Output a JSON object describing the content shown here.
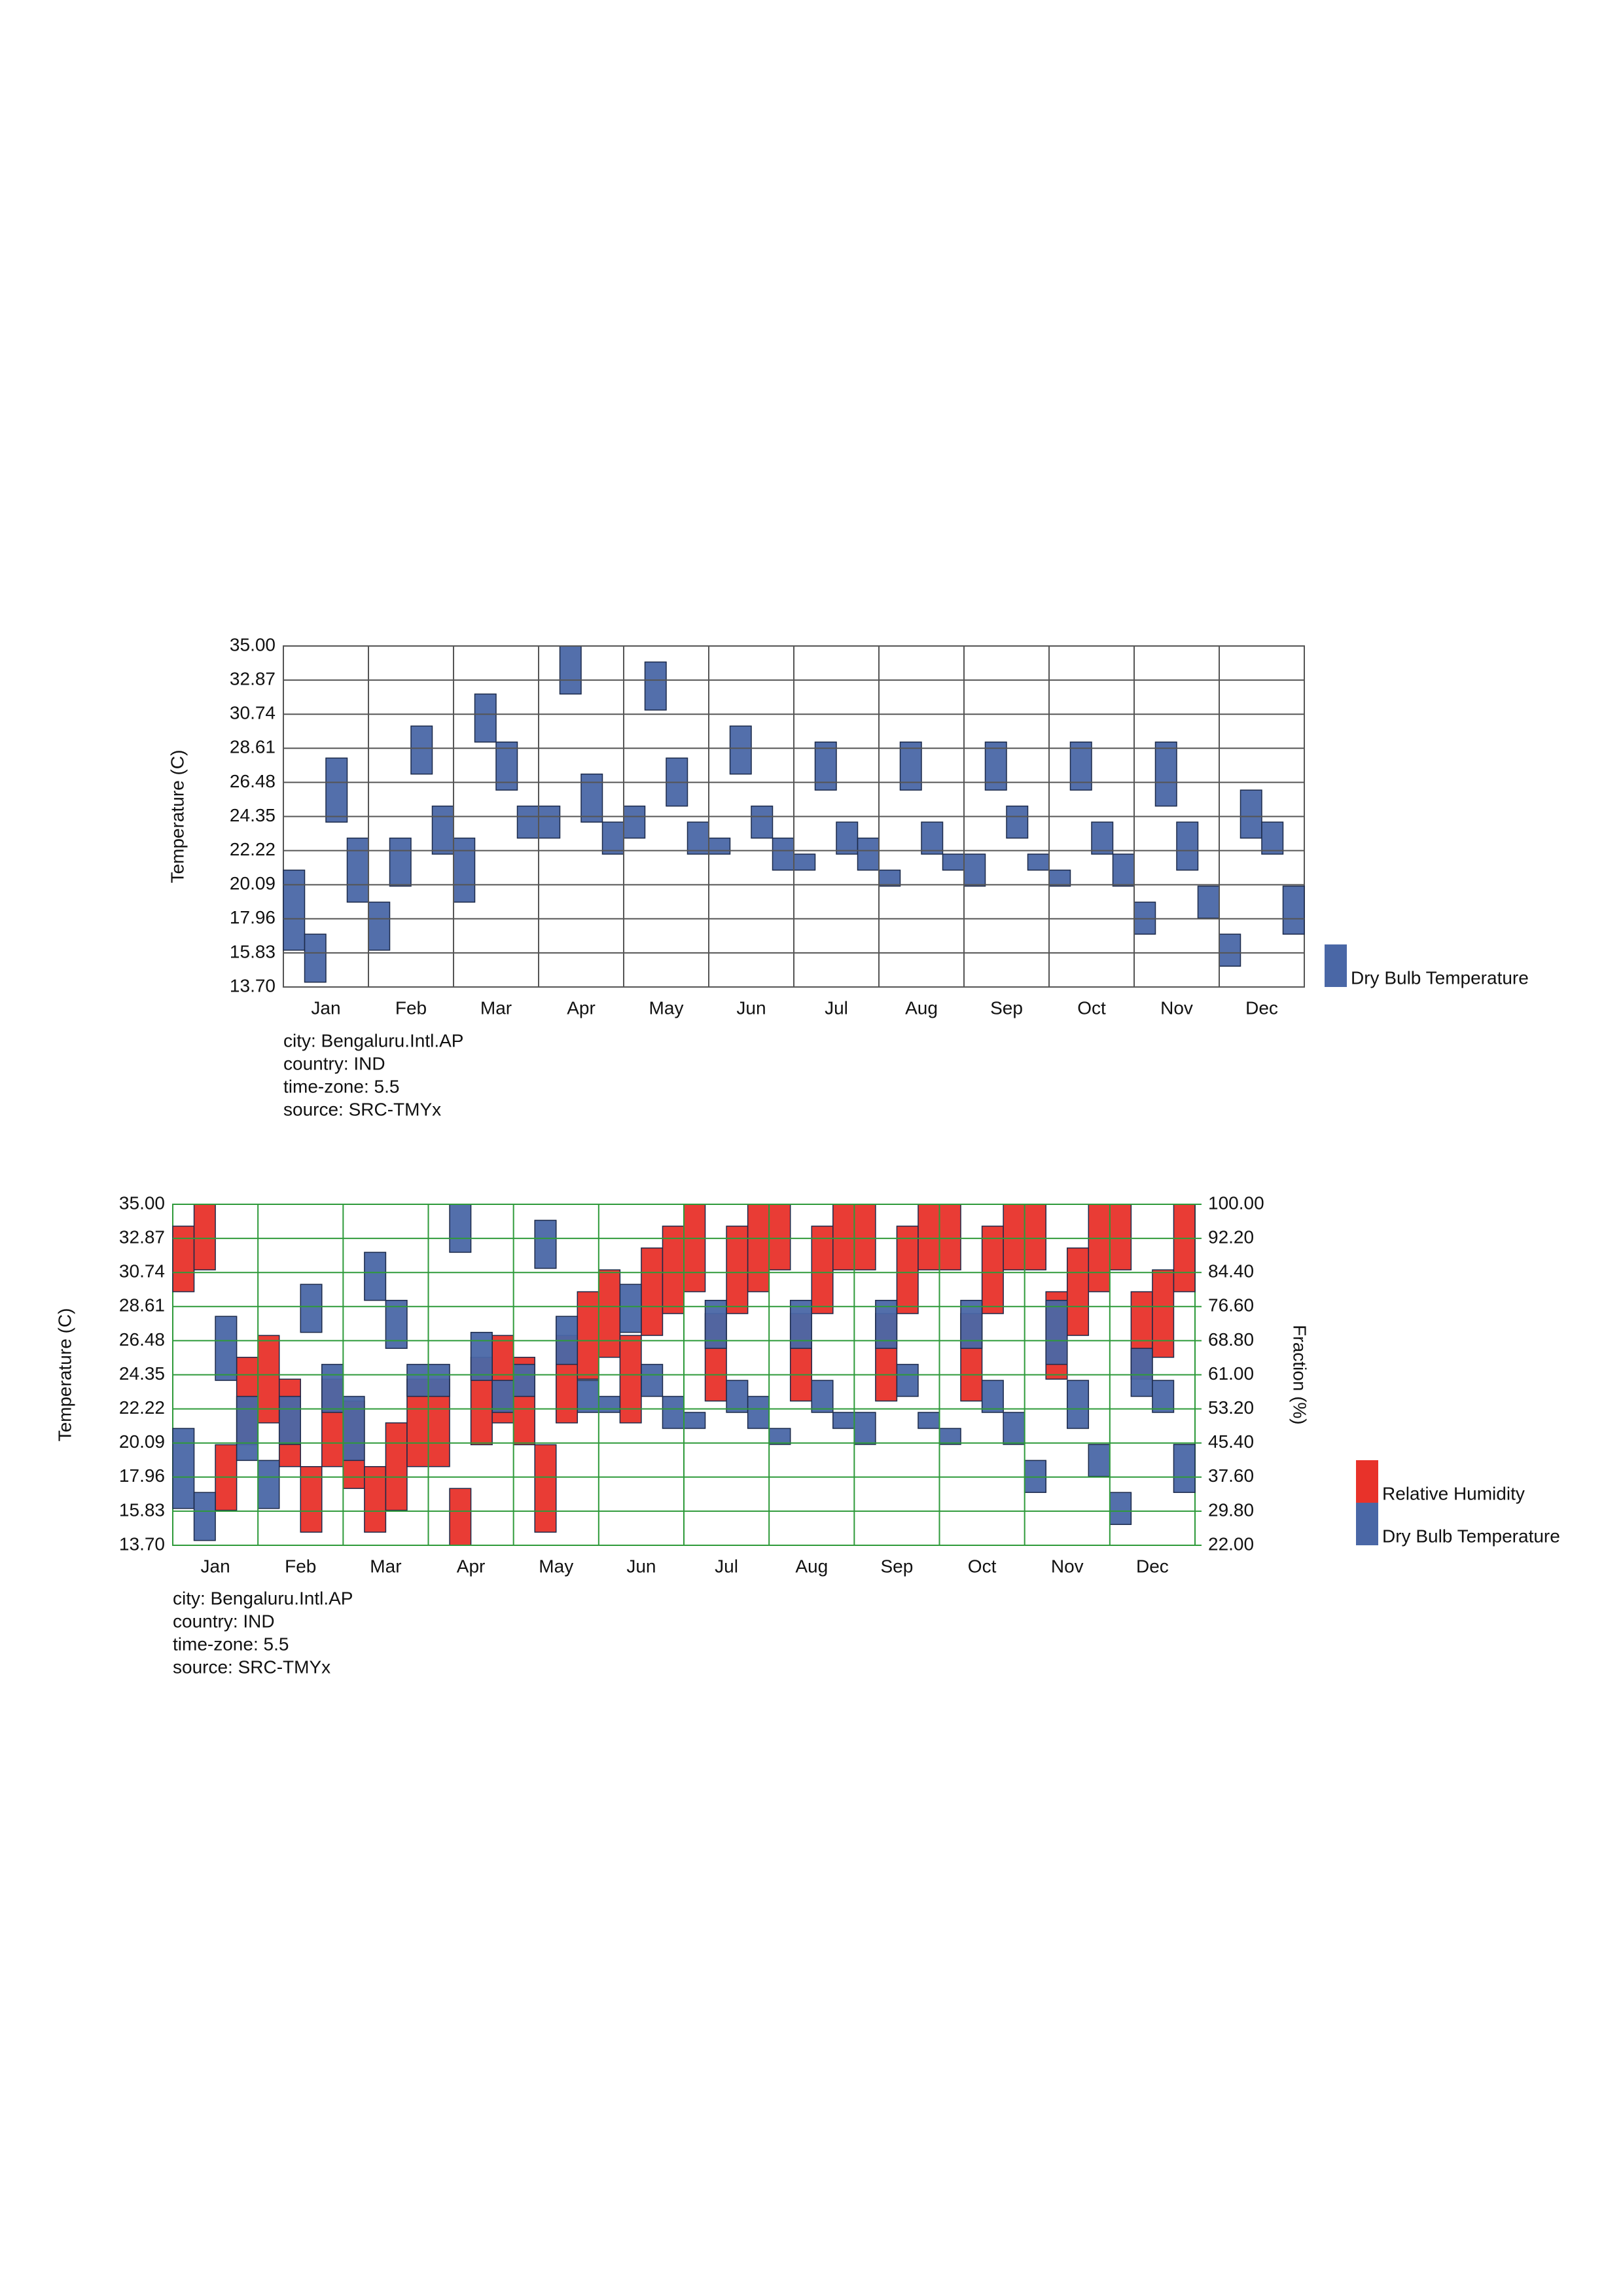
{
  "chart_data": [
    {
      "type": "range",
      "categories": [
        "Jan",
        "Feb",
        "Mar",
        "Apr",
        "May",
        "Jun",
        "Jul",
        "Aug",
        "Sep",
        "Oct",
        "Nov",
        "Dec"
      ],
      "y_label": "Temperature (C)",
      "ylim": [
        13.7,
        35
      ],
      "yticks": [
        {
          "value": 13.7,
          "label": "13.70"
        },
        15.83,
        17.96,
        20.09,
        22.22,
        24.35,
        26.48,
        28.61,
        30.74,
        32.87,
        {
          "value": 35,
          "label": "35.00"
        }
      ],
      "grid": true,
      "grid_color": "#555555",
      "series": [
        {
          "name": "Dry Bulb Temperature",
          "color": "#4a67a6",
          "max": [
            21,
            17,
            28,
            23,
            19,
            23,
            30,
            25,
            23,
            32,
            29,
            25,
            25,
            35,
            27,
            24,
            25,
            34,
            28,
            24,
            23,
            30,
            25,
            23,
            22,
            29,
            24,
            23,
            21,
            29,
            24,
            22,
            22,
            29,
            25,
            22,
            21,
            29,
            24,
            22,
            19,
            29,
            24,
            20,
            17,
            26,
            24,
            20
          ],
          "min": [
            16,
            14,
            24,
            19,
            16,
            20,
            27,
            22,
            19,
            29,
            26,
            23,
            23,
            32,
            24,
            22,
            23,
            31,
            25,
            22,
            22,
            27,
            23,
            21,
            21,
            26,
            22,
            21,
            20,
            26,
            22,
            21,
            20,
            26,
            23,
            21,
            20,
            26,
            22,
            20,
            17,
            25,
            21,
            18,
            15,
            23,
            22,
            17
          ]
        }
      ],
      "notes": [
        "city: Bengaluru.Intl.AP",
        "country: IND",
        "time-zone: 5.5",
        "source: SRC-TMYx"
      ]
    },
    {
      "type": "range",
      "categories": [
        "Jan",
        "Feb",
        "Mar",
        "Apr",
        "May",
        "Jun",
        "Jul",
        "Aug",
        "Sep",
        "Oct",
        "Nov",
        "Dec"
      ],
      "y_label": "Temperature (C)",
      "y2_label": "Fraction (%)",
      "ylim": [
        13.7,
        35
      ],
      "yticks": [
        {
          "value": 13.7,
          "label": "13.70"
        },
        15.83,
        17.96,
        20.09,
        22.22,
        24.35,
        26.48,
        28.61,
        30.74,
        32.87,
        {
          "value": 35,
          "label": "35.00"
        }
      ],
      "y2lim": [
        22,
        100
      ],
      "y2ticks": [
        {
          "value": 22,
          "label": "22.00"
        },
        {
          "value": 29.8,
          "label": "29.80"
        },
        {
          "value": 37.6,
          "label": "37.60"
        },
        {
          "value": 45.4,
          "label": "45.40"
        },
        {
          "value": 53.2,
          "label": "53.20"
        },
        {
          "value": 61,
          "label": "61.00"
        },
        {
          "value": 68.8,
          "label": "68.80"
        },
        {
          "value": 76.6,
          "label": "76.60"
        },
        {
          "value": 84.4,
          "label": "84.40"
        },
        {
          "value": 92.2,
          "label": "92.20"
        },
        {
          "value": 100,
          "label": "100.00"
        }
      ],
      "grid": true,
      "grid_color": "#2e9a3a",
      "series": [
        {
          "name": "Relative Humidity",
          "color": "#e8322a",
          "axis": "y2",
          "max": [
            95,
            100,
            45,
            65,
            70,
            60,
            40,
            60,
            55,
            40,
            50,
            60,
            60,
            35,
            65,
            70,
            65,
            45,
            70,
            80,
            85,
            70,
            90,
            95,
            100,
            75,
            95,
            100,
            100,
            75,
            95,
            100,
            100,
            75,
            95,
            100,
            100,
            75,
            95,
            100,
            100,
            80,
            90,
            100,
            100,
            80,
            85,
            100
          ],
          "min": [
            80,
            85,
            30,
            45,
            50,
            40,
            25,
            40,
            35,
            25,
            30,
            40,
            40,
            22,
            45,
            50,
            45,
            25,
            50,
            60,
            65,
            50,
            70,
            75,
            80,
            55,
            75,
            80,
            85,
            55,
            75,
            85,
            85,
            55,
            75,
            85,
            85,
            55,
            75,
            85,
            85,
            60,
            70,
            80,
            85,
            60,
            65,
            80
          ]
        },
        {
          "name": "Dry Bulb Temperature",
          "color": "#4a67a6",
          "max": [
            21,
            17,
            28,
            23,
            19,
            23,
            30,
            25,
            23,
            32,
            29,
            25,
            25,
            35,
            27,
            24,
            25,
            34,
            28,
            24,
            23,
            30,
            25,
            23,
            22,
            29,
            24,
            23,
            21,
            29,
            24,
            22,
            22,
            29,
            25,
            22,
            21,
            29,
            24,
            22,
            19,
            29,
            24,
            20,
            17,
            26,
            24,
            20
          ],
          "min": [
            16,
            14,
            24,
            19,
            16,
            20,
            27,
            22,
            19,
            29,
            26,
            23,
            23,
            32,
            24,
            22,
            23,
            31,
            25,
            22,
            22,
            27,
            23,
            21,
            21,
            26,
            22,
            21,
            20,
            26,
            22,
            21,
            20,
            26,
            23,
            21,
            20,
            26,
            22,
            20,
            17,
            25,
            21,
            18,
            15,
            23,
            22,
            17
          ]
        }
      ],
      "notes": [
        "city: Bengaluru.Intl.AP",
        "country: IND",
        "time-zone: 5.5",
        "source: SRC-TMYx"
      ]
    }
  ]
}
